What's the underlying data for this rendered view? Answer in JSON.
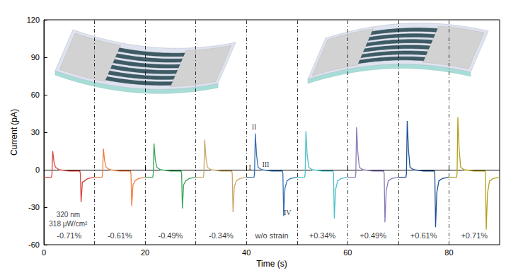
{
  "chart_data": {
    "type": "line",
    "x_label": "Time (s)",
    "y_label": "Current (pA)",
    "xlim": [
      0,
      90
    ],
    "xticks": [
      0,
      20,
      40,
      60,
      80
    ],
    "ylim": [
      -60,
      120
    ],
    "yticks": [
      -60,
      -30,
      0,
      30,
      60,
      90,
      120
    ],
    "grid": false,
    "vlines": [
      10,
      20,
      30,
      40,
      50,
      60,
      70,
      80
    ],
    "series": [
      {
        "name": "-0.71%",
        "color": "#d9453f",
        "x": [
          0,
          1.5,
          1.6,
          1.75,
          2,
          2.3,
          3,
          5,
          7.1,
          7.2,
          7.35,
          7.6,
          8,
          8.7,
          10
        ],
        "values": [
          -6,
          -6,
          -3,
          15,
          6,
          2,
          0,
          -1,
          -1,
          -3,
          -26,
          -10,
          -9,
          -7,
          -6
        ]
      },
      {
        "name": "-0.61%",
        "color": "#f07e3e",
        "x": [
          10,
          11.5,
          11.6,
          11.75,
          12,
          12.3,
          13,
          15,
          17.1,
          17.2,
          17.35,
          17.6,
          18,
          18.7,
          20
        ],
        "values": [
          -6,
          -6,
          -3,
          17,
          7,
          2,
          0,
          -1,
          -1,
          -3,
          -29,
          -12,
          -9,
          -7,
          -6
        ]
      },
      {
        "name": "-0.49%",
        "color": "#3aa55a",
        "x": [
          20,
          21.5,
          21.6,
          21.75,
          22,
          22.3,
          23,
          25,
          27.1,
          27.2,
          27.35,
          27.6,
          28,
          28.7,
          30
        ],
        "values": [
          -6,
          -6,
          -3,
          21,
          8,
          2,
          0,
          -1,
          -1,
          -3,
          -31,
          -12,
          -9,
          -7,
          -6
        ]
      },
      {
        "name": "-0.34%",
        "color": "#c9a86a",
        "x": [
          30,
          31.5,
          31.6,
          31.75,
          32,
          32.3,
          33,
          35,
          37.1,
          37.2,
          37.35,
          37.6,
          38,
          38.7,
          40
        ],
        "values": [
          -6,
          -6,
          -3,
          24,
          10,
          2,
          0,
          -1,
          -1,
          -3,
          -34,
          -14,
          -9,
          -7,
          -6
        ]
      },
      {
        "name": "w/o strain",
        "color": "#3a6fb3",
        "x": [
          40,
          41.5,
          41.6,
          41.75,
          42,
          42.3,
          43,
          45,
          47.1,
          47.2,
          47.35,
          47.6,
          48,
          48.7,
          50
        ],
        "values": [
          -6,
          -6,
          -3,
          29,
          12,
          2,
          0,
          -1,
          -1,
          -3,
          -37,
          -15,
          -9,
          -7,
          -6
        ]
      },
      {
        "name": "+0.34%",
        "color": "#4fc0c8",
        "x": [
          50,
          51.5,
          51.6,
          51.75,
          52,
          52.3,
          53,
          55,
          57.1,
          57.2,
          57.35,
          57.6,
          58,
          58.7,
          60
        ],
        "values": [
          -6,
          -6,
          -3,
          31,
          12,
          2,
          0,
          -1,
          -1,
          -3,
          -39,
          -16,
          -9,
          -7,
          -6
        ]
      },
      {
        "name": "+0.49%",
        "color": "#8b79b9",
        "x": [
          60,
          61.5,
          61.6,
          61.75,
          62,
          62.3,
          63,
          65,
          67.1,
          67.2,
          67.35,
          67.6,
          68,
          68.7,
          70
        ],
        "values": [
          -6,
          -6,
          -3,
          34,
          14,
          2,
          0,
          -1,
          -1,
          -3,
          -42,
          -17,
          -9,
          -7,
          -6
        ]
      },
      {
        "name": "+0.61%",
        "color": "#1d4f91",
        "x": [
          70,
          71.5,
          71.6,
          71.75,
          72,
          72.3,
          73,
          75,
          77.1,
          77.2,
          77.35,
          77.6,
          78,
          78.7,
          80
        ],
        "values": [
          -6,
          -6,
          -3,
          39,
          16,
          2,
          0,
          -1,
          -1,
          -3,
          -46,
          -18,
          -9,
          -7,
          -6
        ]
      },
      {
        "name": "+0.71%",
        "color": "#b3a01c",
        "x": [
          80,
          81.5,
          81.6,
          81.75,
          82,
          82.3,
          83,
          85,
          87.1,
          87.2,
          87.35,
          87.6,
          88,
          88.7,
          90
        ],
        "values": [
          -6,
          -6,
          -3,
          42,
          17,
          2,
          0,
          -1,
          -1,
          -3,
          -48,
          -19,
          -9,
          -7,
          -6
        ]
      }
    ],
    "annotations": [
      {
        "text": "320 nm",
        "x": 4.8,
        "y": -36
      },
      {
        "text": "318 μW/cm²",
        "x": 4.8,
        "y": -43.5
      },
      {
        "text": "I",
        "x": 40.7,
        "y": 2
      },
      {
        "text": "II",
        "x": 41.5,
        "y": 34
      },
      {
        "text": "III",
        "x": 43.8,
        "y": 4
      },
      {
        "text": "IV",
        "x": 48.1,
        "y": -34
      }
    ]
  }
}
